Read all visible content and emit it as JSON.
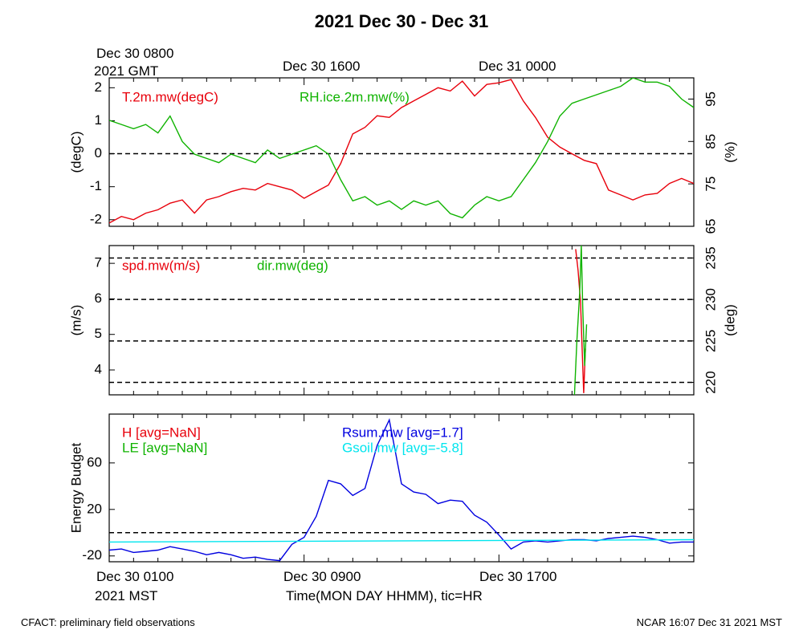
{
  "title": "2021 Dec 30 - Dec 31",
  "top_axis": {
    "start_label_line1": "Dec 30 0800",
    "start_label_line2": "2021 GMT",
    "tick_labels": [
      "Dec 30 1600",
      "Dec 31 0000"
    ]
  },
  "bottom_axis": {
    "start_label_line1": "Dec 30 0100",
    "start_label_line2": "2021 MST",
    "tick_labels": [
      "Dec 30 0900",
      "Dec 30 1700"
    ],
    "xlabel": "Time(MON DAY HHMM), tic=HR"
  },
  "footer": {
    "left": "CFACT: preliminary field observations",
    "right": "NCAR 16:07 Dec 31 2021 MST"
  },
  "colors": {
    "red": "#e8000b",
    "green": "#0fb300",
    "blue": "#0000e0",
    "cyan": "#00e5ee"
  },
  "chart_data": [
    {
      "type": "line",
      "panel": "temperature-rh",
      "x_unit": "hours since Dec 30 0100 MST",
      "x_range": [
        0,
        24
      ],
      "ylabel": "(degC)",
      "ylim": [
        -2.2,
        2.3
      ],
      "yticks": [
        -2,
        -1,
        0,
        1,
        2
      ],
      "ylabel_right": "(%)",
      "ylim_right": [
        65,
        100
      ],
      "yticks_right": [
        65,
        75,
        85,
        95
      ],
      "reference_lines": [
        0
      ],
      "series": [
        {
          "name": "T.2m.mw(degC)",
          "axis": "left",
          "color": "red",
          "x": [
            0,
            0.5,
            1,
            1.5,
            2,
            2.5,
            3,
            3.5,
            4,
            4.5,
            5,
            5.5,
            6,
            6.5,
            7,
            7.5,
            8,
            8.5,
            9,
            9.5,
            10,
            10.5,
            11,
            11.5,
            12,
            12.5,
            13,
            13.5,
            14,
            14.5,
            15,
            15.5,
            16,
            16.5,
            17,
            17.5,
            18,
            18.5,
            19,
            19.5,
            20,
            20.5,
            21,
            21.5,
            22,
            22.5,
            23,
            23.5,
            24
          ],
          "values": [
            -2.1,
            -1.9,
            -2.0,
            -1.8,
            -1.7,
            -1.5,
            -1.4,
            -1.8,
            -1.4,
            -1.3,
            -1.15,
            -1.05,
            -1.1,
            -0.9,
            -1.0,
            -1.1,
            -1.35,
            -1.15,
            -0.95,
            -0.3,
            0.6,
            0.8,
            1.15,
            1.1,
            1.4,
            1.6,
            1.8,
            2.0,
            1.9,
            2.2,
            1.75,
            2.1,
            2.15,
            2.25,
            1.6,
            1.1,
            0.5,
            0.2,
            0.0,
            -0.2,
            -0.3,
            -1.1,
            -1.25,
            -1.4,
            -1.25,
            -1.2,
            -0.9,
            -0.75,
            -0.9
          ]
        },
        {
          "name": "RH.ice.2m.mw(%)",
          "axis": "right",
          "color": "green",
          "x": [
            0,
            0.5,
            1,
            1.5,
            2,
            2.5,
            3,
            3.5,
            4,
            4.5,
            5,
            5.5,
            6,
            6.5,
            7,
            7.5,
            8,
            8.5,
            9,
            9.5,
            10,
            10.5,
            11,
            11.5,
            12,
            12.5,
            13,
            13.5,
            14,
            14.5,
            15,
            15.5,
            16,
            16.5,
            17,
            17.5,
            18,
            18.5,
            19,
            19.5,
            20,
            20.5,
            21,
            21.5,
            22,
            22.5,
            23,
            23.5,
            24
          ],
          "values": [
            90,
            89,
            88,
            89,
            87,
            91,
            85,
            82,
            81,
            80,
            82,
            81,
            80,
            83,
            81,
            82,
            83,
            84,
            82,
            76,
            71,
            72,
            70,
            71,
            69,
            71,
            70,
            71,
            68,
            67,
            70,
            72,
            71,
            72,
            76,
            80,
            85,
            91,
            94,
            95,
            96,
            97,
            98,
            100,
            99,
            99,
            98,
            95,
            93
          ]
        }
      ]
    },
    {
      "type": "line",
      "panel": "wind",
      "x_unit": "hours since Dec 30 0100 MST",
      "x_range": [
        0,
        24
      ],
      "ylabel": "(m/s)",
      "ylim": [
        3.3,
        7.5
      ],
      "yticks": [
        4,
        5,
        6,
        7
      ],
      "ylabel_right": "(deg)",
      "ylim_right": [
        218.5,
        236.5
      ],
      "yticks_right": [
        220,
        225,
        230,
        235
      ],
      "reference_lines_right": [
        220,
        225,
        230,
        235
      ],
      "series": [
        {
          "name": "spd.mw(m/s)",
          "axis": "left",
          "color": "red",
          "x": [
            19.15,
            19.25,
            19.35,
            19.42,
            19.48,
            19.55
          ],
          "values": [
            7.4,
            6.8,
            5.9,
            4.5,
            3.35,
            4.6
          ]
        },
        {
          "name": "dir.mw(deg)",
          "axis": "right",
          "color": "green",
          "x": [
            19.1,
            19.2,
            19.32,
            19.38,
            19.44,
            19.52,
            19.6
          ],
          "values": [
            218.5,
            225,
            231,
            236.5,
            229,
            222,
            227
          ]
        }
      ]
    },
    {
      "type": "line",
      "panel": "energy-budget",
      "x_unit": "hours since Dec 30 0100 MST",
      "x_range": [
        0,
        24
      ],
      "ylabel": "Energy Budget",
      "ylim": [
        -25,
        102
      ],
      "yticks": [
        -20,
        20,
        60
      ],
      "reference_lines": [
        0
      ],
      "series": [
        {
          "name": "H [avg=NaN]",
          "color": "red",
          "values": []
        },
        {
          "name": "LE [avg=NaN]",
          "color": "green",
          "values": []
        },
        {
          "name": "Rsum.mw [avg=1.7]",
          "color": "blue",
          "x": [
            0,
            0.5,
            1,
            1.5,
            2,
            2.5,
            3,
            3.5,
            4,
            4.5,
            5,
            5.5,
            6,
            6.5,
            7,
            7.5,
            8,
            8.5,
            9,
            9.5,
            10,
            10.5,
            11,
            11.5,
            12,
            12.5,
            13,
            13.5,
            14,
            14.5,
            15,
            15.5,
            16,
            16.5,
            17,
            17.5,
            18,
            18.5,
            19,
            19.5,
            20,
            20.5,
            21,
            21.5,
            22,
            22.5,
            23,
            23.5,
            24
          ],
          "values": [
            -15,
            -14,
            -17,
            -16,
            -15,
            -12,
            -14,
            -16,
            -19,
            -17,
            -19,
            -22,
            -21,
            -23,
            -24,
            -10,
            -4,
            14,
            45,
            42,
            32,
            38,
            75,
            97,
            42,
            35,
            33,
            25,
            28,
            27,
            15,
            9,
            -2,
            -14,
            -8,
            -7,
            -8,
            -7,
            -6,
            -6,
            -7,
            -5,
            -4,
            -3,
            -4,
            -6,
            -9,
            -8,
            -8
          ]
        },
        {
          "name": "Gsoil.mw [avg=-5.8]",
          "color": "cyan",
          "x": [
            0,
            24
          ],
          "values": [
            -8,
            -6
          ]
        }
      ]
    }
  ]
}
